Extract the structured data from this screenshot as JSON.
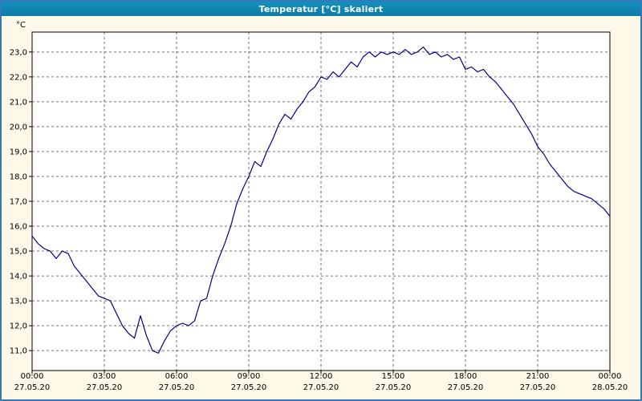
{
  "window": {
    "title": "Temperatur [°C] skaliert"
  },
  "colors": {
    "title_bar": "#0d7ca6",
    "window_border": "#3579b8",
    "background": "#fdf8e7",
    "plot_bg": "#ffffff",
    "grid": "#707070",
    "axis": "#000000",
    "line": "#00008b"
  },
  "chart_data": {
    "type": "line",
    "title": "Temperatur [°C] skaliert",
    "y_axis_unit": "°C",
    "grid": true,
    "legend": "none",
    "xlim": [
      0,
      24
    ],
    "ylim": [
      10.2,
      23.8
    ],
    "line_color": "#00008b",
    "yticks": [
      {
        "value": 11,
        "label": "11,0"
      },
      {
        "value": 12,
        "label": "12,0"
      },
      {
        "value": 13,
        "label": "13,0"
      },
      {
        "value": 14,
        "label": "14,0"
      },
      {
        "value": 15,
        "label": "15,0"
      },
      {
        "value": 16,
        "label": "16,0"
      },
      {
        "value": 17,
        "label": "17,0"
      },
      {
        "value": 18,
        "label": "18,0"
      },
      {
        "value": 19,
        "label": "19,0"
      },
      {
        "value": 20,
        "label": "20,0"
      },
      {
        "value": 21,
        "label": "21,0"
      },
      {
        "value": 22,
        "label": "22,0"
      },
      {
        "value": 23,
        "label": "23,0"
      }
    ],
    "xticks": [
      {
        "hour": 0,
        "time": "00:00",
        "date": "27.05.20"
      },
      {
        "hour": 3,
        "time": "03:00",
        "date": "27.05.20"
      },
      {
        "hour": 6,
        "time": "06:00",
        "date": "27.05.20"
      },
      {
        "hour": 9,
        "time": "09:00",
        "date": "27.05.20"
      },
      {
        "hour": 12,
        "time": "12:00",
        "date": "27.05.20"
      },
      {
        "hour": 15,
        "time": "15:00",
        "date": "27.05.20"
      },
      {
        "hour": 18,
        "time": "18:00",
        "date": "27.05.20"
      },
      {
        "hour": 21,
        "time": "21:00",
        "date": "27.05.20"
      },
      {
        "hour": 24,
        "time": "00:00",
        "date": "28.05.20"
      }
    ],
    "series": [
      {
        "name": "Temperatur [°C]",
        "x": [
          0,
          0.25,
          0.5,
          0.75,
          1,
          1.25,
          1.5,
          1.75,
          2,
          2.25,
          2.5,
          2.75,
          3,
          3.25,
          3.5,
          3.75,
          4,
          4.25,
          4.5,
          4.75,
          5,
          5.25,
          5.5,
          5.75,
          6,
          6.25,
          6.5,
          6.75,
          7,
          7.25,
          7.5,
          7.75,
          8,
          8.25,
          8.5,
          8.75,
          9,
          9.25,
          9.5,
          9.75,
          10,
          10.25,
          10.5,
          10.75,
          11,
          11.25,
          11.5,
          11.75,
          12,
          12.25,
          12.5,
          12.75,
          13,
          13.25,
          13.5,
          13.75,
          14,
          14.25,
          14.5,
          14.75,
          15,
          15.25,
          15.5,
          15.75,
          16,
          16.25,
          16.5,
          16.75,
          17,
          17.25,
          17.5,
          17.75,
          18,
          18.25,
          18.5,
          18.75,
          19,
          19.25,
          19.5,
          19.75,
          20,
          20.25,
          20.5,
          20.75,
          21,
          21.25,
          21.5,
          21.75,
          22,
          22.25,
          22.5,
          22.75,
          23,
          23.25,
          23.5,
          23.75,
          24
        ],
        "values": [
          15.6,
          15.3,
          15.1,
          15.0,
          14.7,
          15.0,
          14.9,
          14.4,
          14.1,
          13.8,
          13.5,
          13.2,
          13.1,
          13.0,
          12.5,
          12.0,
          11.7,
          11.5,
          12.4,
          11.6,
          11.0,
          10.9,
          11.4,
          11.8,
          12.0,
          12.1,
          12.0,
          12.2,
          13.0,
          13.1,
          14.0,
          14.7,
          15.3,
          16.0,
          16.9,
          17.5,
          18.0,
          18.6,
          18.4,
          19.0,
          19.5,
          20.1,
          20.5,
          20.3,
          20.7,
          21.0,
          21.4,
          21.6,
          22.0,
          21.9,
          22.2,
          22.0,
          22.3,
          22.6,
          22.4,
          22.8,
          23.0,
          22.8,
          23.0,
          22.9,
          23.0,
          22.9,
          23.1,
          22.9,
          23.0,
          23.2,
          22.9,
          23.0,
          22.8,
          22.9,
          22.7,
          22.8,
          22.3,
          22.4,
          22.2,
          22.3,
          22.0,
          21.8,
          21.5,
          21.2,
          20.9,
          20.5,
          20.1,
          19.7,
          19.2,
          18.9,
          18.5,
          18.2,
          17.9,
          17.6,
          17.4,
          17.3,
          17.2,
          17.1,
          16.9,
          16.7,
          16.4
        ]
      }
    ]
  }
}
